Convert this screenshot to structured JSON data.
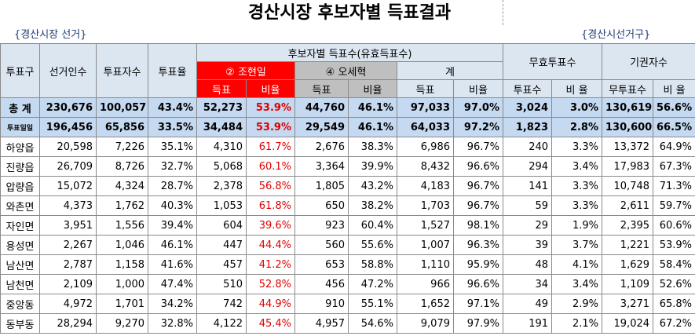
{
  "header": {
    "title": "경산시장 후보자별 득표결과",
    "election": "{경산시장 선거}",
    "district": "{경산시선거구}"
  },
  "table": {
    "fixed_columns": [
      "투표구",
      "선거인수",
      "투표자수",
      "투표율"
    ],
    "group": "후보자별 득표수(유효득표수)",
    "invalid": "무효투표수",
    "abstain": "기권자수",
    "candidates": [
      "② 조현일",
      "④ 오세혁",
      "계"
    ],
    "sub_headers": [
      "득표",
      "비율",
      "득표",
      "비율",
      "득표",
      "비율",
      "투표수",
      "비 율",
      "무투표수",
      "비 율"
    ],
    "rows": [
      [
        "총 계",
        "230,676",
        "100,057",
        "43.4%",
        "52,273",
        "53.9%",
        "44,760",
        "46.1%",
        "97,033",
        "97.0%",
        "3,024",
        "3.0%",
        "130,619",
        "56.6%"
      ],
      [
        "투표일일",
        "196,456",
        "65,856",
        "33.5%",
        "34,484",
        "53.9%",
        "29,549",
        "46.1%",
        "64,033",
        "97.2%",
        "1,823",
        "2.8%",
        "130,600",
        "66.5%"
      ],
      [
        "하양읍",
        "20,598",
        "7,226",
        "35.1%",
        "4,310",
        "61.7%",
        "2,676",
        "38.3%",
        "6,986",
        "96.7%",
        "240",
        "3.3%",
        "13,372",
        "64.9%"
      ],
      [
        "진량읍",
        "26,709",
        "8,726",
        "32.7%",
        "5,068",
        "60.1%",
        "3,364",
        "39.9%",
        "8,432",
        "96.6%",
        "294",
        "3.4%",
        "17,983",
        "67.3%"
      ],
      [
        "압량읍",
        "15,072",
        "4,324",
        "28.7%",
        "2,378",
        "56.8%",
        "1,805",
        "43.2%",
        "4,183",
        "96.7%",
        "141",
        "3.3%",
        "10,748",
        "71.3%"
      ],
      [
        "와촌면",
        "4,373",
        "1,762",
        "40.3%",
        "1,053",
        "61.8%",
        "650",
        "38.2%",
        "1,703",
        "96.7%",
        "59",
        "3.3%",
        "2,611",
        "59.7%"
      ],
      [
        "자인면",
        "3,951",
        "1,556",
        "39.4%",
        "604",
        "39.6%",
        "923",
        "60.4%",
        "1,527",
        "98.1%",
        "29",
        "1.9%",
        "2,395",
        "60.6%"
      ],
      [
        "용성면",
        "2,267",
        "1,046",
        "46.1%",
        "447",
        "44.4%",
        "560",
        "55.6%",
        "1,007",
        "96.3%",
        "39",
        "3.7%",
        "1,221",
        "53.9%"
      ],
      [
        "남산면",
        "2,787",
        "1,158",
        "41.6%",
        "457",
        "41.2%",
        "653",
        "58.8%",
        "1,110",
        "95.9%",
        "48",
        "4.1%",
        "1,629",
        "58.4%"
      ],
      [
        "남천면",
        "2,109",
        "1,000",
        "47.4%",
        "510",
        "52.8%",
        "456",
        "47.2%",
        "966",
        "96.6%",
        "34",
        "3.4%",
        "1,109",
        "52.6%"
      ],
      [
        "중앙동",
        "4,972",
        "1,701",
        "34.2%",
        "742",
        "44.9%",
        "910",
        "55.1%",
        "1,652",
        "97.1%",
        "49",
        "2.9%",
        "3,271",
        "65.8%"
      ],
      [
        "동부동",
        "28,294",
        "9,270",
        "32.8%",
        "4,122",
        "45.4%",
        "4,957",
        "54.6%",
        "9,079",
        "97.9%",
        "191",
        "2.1%",
        "19,024",
        "67.2%"
      ]
    ]
  }
}
